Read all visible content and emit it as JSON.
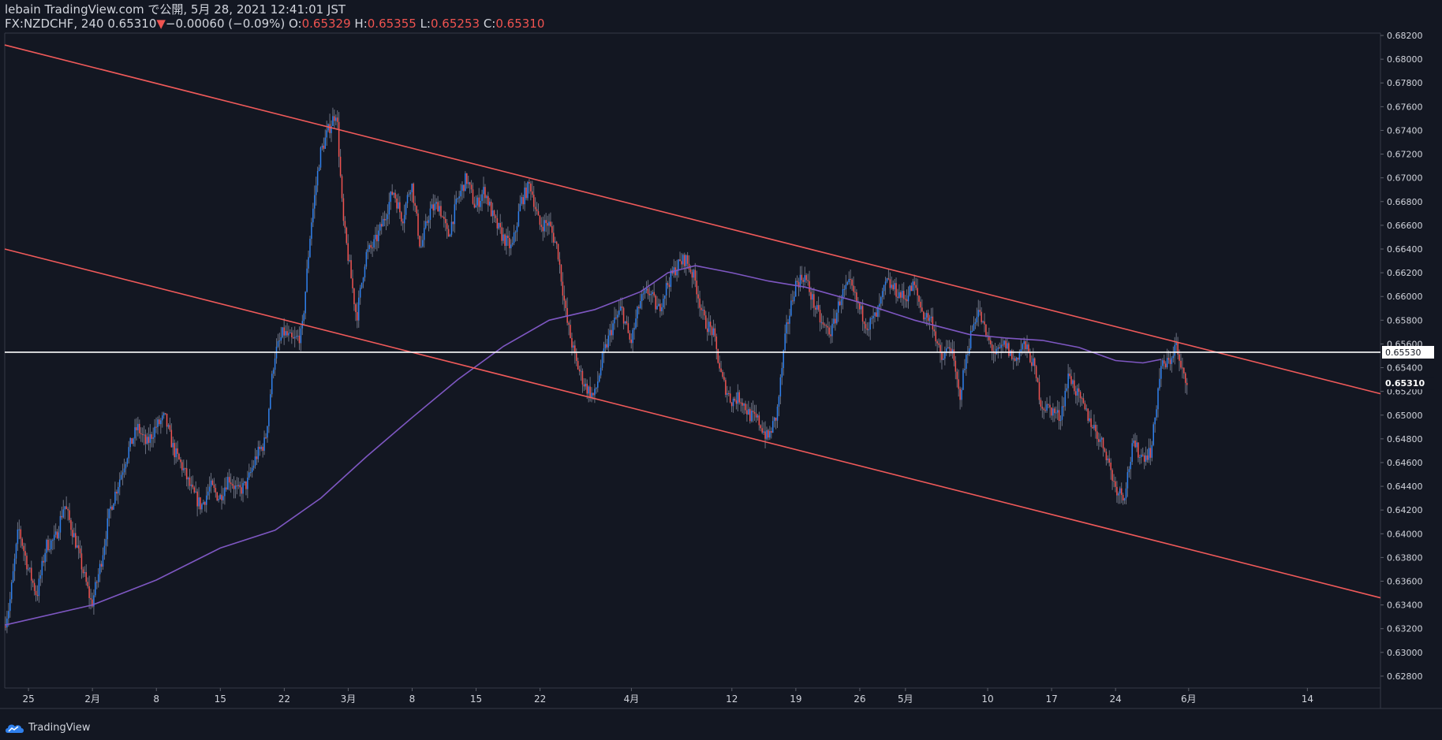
{
  "header": {
    "line1": "lebain TradingView.com で公開, 5月 28, 2021 12:41:01 JST",
    "symbol": "FX:NZDCHF, 240",
    "last": "0.65310",
    "change_arrow": "▼",
    "change": "−0.00060 (−0.09%)",
    "o_label": "O:",
    "o": "0.65329",
    "h_label": "H:",
    "h": "0.65355",
    "l_label": "L:",
    "l": "0.65253",
    "c_label": "C:",
    "c": "0.65310"
  },
  "footer": {
    "brand": "TradingView"
  },
  "colors": {
    "up": "#2f80ed",
    "down": "#ef5350",
    "ma": "#7e57c2",
    "trend": "#f05a5a",
    "bg": "#131722",
    "grid": "#2a2e39",
    "text": "#d1d4dc"
  },
  "chart_data": {
    "type": "candlestick",
    "ylim": [
      0.627,
      0.6822
    ],
    "y_ticks": [
      "0.62800",
      "0.63000",
      "0.63200",
      "0.63400",
      "0.63600",
      "0.63800",
      "0.64000",
      "0.64200",
      "0.64400",
      "0.64600",
      "0.64800",
      "0.65000",
      "0.65200",
      "0.65400",
      "0.65600",
      "0.65800",
      "0.66000",
      "0.66200",
      "0.66400",
      "0.66600",
      "0.66800",
      "0.67000",
      "0.67200",
      "0.67400",
      "0.67600",
      "0.67800",
      "0.68000",
      "0.68200"
    ],
    "x_ticks": [
      {
        "label": "25",
        "day": -7
      },
      {
        "label": "2月",
        "day": 0
      },
      {
        "label": "8",
        "day": 7
      },
      {
        "label": "15",
        "day": 14
      },
      {
        "label": "22",
        "day": 21
      },
      {
        "label": "3月",
        "day": 28
      },
      {
        "label": "8",
        "day": 35
      },
      {
        "label": "15",
        "day": 42
      },
      {
        "label": "22",
        "day": 49
      },
      {
        "label": "4月",
        "day": 59
      },
      {
        "label": "12",
        "day": 70
      },
      {
        "label": "19",
        "day": 77
      },
      {
        "label": "26",
        "day": 84
      },
      {
        "label": "5月",
        "day": 89
      },
      {
        "label": "10",
        "day": 98
      },
      {
        "label": "17",
        "day": 105
      },
      {
        "label": "24",
        "day": 112
      },
      {
        "label": "6月",
        "day": 120
      },
      {
        "label": "14",
        "day": 133
      }
    ],
    "x_range_days": [
      -9.6,
      141.0
    ],
    "horizontal_line": {
      "price": 0.6553,
      "label": "0.65530"
    },
    "last_price_label": "0.65310",
    "trend_lines": [
      {
        "from": {
          "day": -9.6,
          "price": 0.6812
        },
        "to": {
          "day": 141.0,
          "price": 0.6518
        }
      },
      {
        "from": {
          "day": -9.6,
          "price": 0.664
        },
        "to": {
          "day": 141.0,
          "price": 0.6346
        }
      }
    ],
    "moving_average": [
      {
        "day": -9.6,
        "price": 0.6323
      },
      {
        "day": 0,
        "price": 0.634
      },
      {
        "day": 7,
        "price": 0.6361
      },
      {
        "day": 14,
        "price": 0.6388
      },
      {
        "day": 20,
        "price": 0.6403
      },
      {
        "day": 25,
        "price": 0.643
      },
      {
        "day": 30,
        "price": 0.6465
      },
      {
        "day": 35,
        "price": 0.6498
      },
      {
        "day": 40,
        "price": 0.653
      },
      {
        "day": 45,
        "price": 0.6558
      },
      {
        "day": 50,
        "price": 0.658
      },
      {
        "day": 55,
        "price": 0.6589
      },
      {
        "day": 60,
        "price": 0.6604
      },
      {
        "day": 63,
        "price": 0.662
      },
      {
        "day": 66,
        "price": 0.6626
      },
      {
        "day": 70,
        "price": 0.662
      },
      {
        "day": 74,
        "price": 0.6613
      },
      {
        "day": 78,
        "price": 0.6608
      },
      {
        "day": 84,
        "price": 0.6595
      },
      {
        "day": 90,
        "price": 0.658
      },
      {
        "day": 96,
        "price": 0.6568
      },
      {
        "day": 100,
        "price": 0.6565
      },
      {
        "day": 104,
        "price": 0.6563
      },
      {
        "day": 108,
        "price": 0.6557
      },
      {
        "day": 112,
        "price": 0.6546
      },
      {
        "day": 115,
        "price": 0.6544
      },
      {
        "day": 117,
        "price": 0.6547
      }
    ],
    "price_path": [
      {
        "day": -9.6,
        "price": 0.6322
      },
      {
        "day": -9,
        "price": 0.634
      },
      {
        "day": -8,
        "price": 0.6405
      },
      {
        "day": -7,
        "price": 0.6372
      },
      {
        "day": -6,
        "price": 0.6348
      },
      {
        "day": -5,
        "price": 0.639
      },
      {
        "day": -4,
        "price": 0.6395
      },
      {
        "day": -3,
        "price": 0.6425
      },
      {
        "day": -2,
        "price": 0.64
      },
      {
        "day": -1,
        "price": 0.637
      },
      {
        "day": 0,
        "price": 0.634
      },
      {
        "day": 1,
        "price": 0.6375
      },
      {
        "day": 2,
        "price": 0.642
      },
      {
        "day": 3,
        "price": 0.6445
      },
      {
        "day": 4,
        "price": 0.647
      },
      {
        "day": 5,
        "price": 0.649
      },
      {
        "day": 6,
        "price": 0.6475
      },
      {
        "day": 7,
        "price": 0.649
      },
      {
        "day": 8,
        "price": 0.6498
      },
      {
        "day": 9,
        "price": 0.647
      },
      {
        "day": 10,
        "price": 0.6455
      },
      {
        "day": 11,
        "price": 0.6435
      },
      {
        "day": 12,
        "price": 0.6423
      },
      {
        "day": 13,
        "price": 0.644
      },
      {
        "day": 14,
        "price": 0.643
      },
      {
        "day": 15,
        "price": 0.6448
      },
      {
        "day": 16,
        "price": 0.6435
      },
      {
        "day": 17,
        "price": 0.6442
      },
      {
        "day": 18,
        "price": 0.6465
      },
      {
        "day": 19,
        "price": 0.6478
      },
      {
        "day": 20,
        "price": 0.655
      },
      {
        "day": 21,
        "price": 0.657
      },
      {
        "day": 22,
        "price": 0.6562
      },
      {
        "day": 23,
        "price": 0.6568
      },
      {
        "day": 24,
        "price": 0.666
      },
      {
        "day": 25,
        "price": 0.672
      },
      {
        "day": 26,
        "price": 0.6742
      },
      {
        "day": 26.8,
        "price": 0.6757
      },
      {
        "day": 27.5,
        "price": 0.6665
      },
      {
        "day": 28.5,
        "price": 0.661
      },
      {
        "day": 29,
        "price": 0.6582
      },
      {
        "day": 30,
        "price": 0.6635
      },
      {
        "day": 31,
        "price": 0.6645
      },
      {
        "day": 32,
        "price": 0.6665
      },
      {
        "day": 33,
        "price": 0.669
      },
      {
        "day": 34,
        "price": 0.6665
      },
      {
        "day": 35,
        "price": 0.6697
      },
      {
        "day": 36,
        "price": 0.664
      },
      {
        "day": 37,
        "price": 0.6672
      },
      {
        "day": 38,
        "price": 0.6678
      },
      {
        "day": 39,
        "price": 0.665
      },
      {
        "day": 40,
        "price": 0.668
      },
      {
        "day": 41,
        "price": 0.67
      },
      {
        "day": 42,
        "price": 0.6675
      },
      {
        "day": 43,
        "price": 0.669
      },
      {
        "day": 44,
        "price": 0.6665
      },
      {
        "day": 45,
        "price": 0.665
      },
      {
        "day": 46,
        "price": 0.664
      },
      {
        "day": 47,
        "price": 0.668
      },
      {
        "day": 48,
        "price": 0.6695
      },
      {
        "day": 49,
        "price": 0.666
      },
      {
        "day": 50,
        "price": 0.6662
      },
      {
        "day": 51,
        "price": 0.664
      },
      {
        "day": 52,
        "price": 0.658
      },
      {
        "day": 53,
        "price": 0.6545
      },
      {
        "day": 54,
        "price": 0.6525
      },
      {
        "day": 55,
        "price": 0.6515
      },
      {
        "day": 56,
        "price": 0.655
      },
      {
        "day": 57,
        "price": 0.6575
      },
      {
        "day": 58,
        "price": 0.659
      },
      {
        "day": 59,
        "price": 0.656
      },
      {
        "day": 60,
        "price": 0.6595
      },
      {
        "day": 61,
        "price": 0.6605
      },
      {
        "day": 62,
        "price": 0.6588
      },
      {
        "day": 63,
        "price": 0.661
      },
      {
        "day": 64,
        "price": 0.6625
      },
      {
        "day": 65,
        "price": 0.6632
      },
      {
        "day": 66,
        "price": 0.6615
      },
      {
        "day": 67,
        "price": 0.658
      },
      {
        "day": 68,
        "price": 0.657
      },
      {
        "day": 69,
        "price": 0.653
      },
      {
        "day": 70,
        "price": 0.6512
      },
      {
        "day": 71,
        "price": 0.6515
      },
      {
        "day": 72,
        "price": 0.65
      },
      {
        "day": 73,
        "price": 0.6495
      },
      {
        "day": 74,
        "price": 0.648
      },
      {
        "day": 75,
        "price": 0.65
      },
      {
        "day": 76,
        "price": 0.657
      },
      {
        "day": 77,
        "price": 0.661
      },
      {
        "day": 78,
        "price": 0.6618
      },
      {
        "day": 79,
        "price": 0.6595
      },
      {
        "day": 80,
        "price": 0.6575
      },
      {
        "day": 81,
        "price": 0.657
      },
      {
        "day": 82,
        "price": 0.66
      },
      {
        "day": 83,
        "price": 0.661
      },
      {
        "day": 84,
        "price": 0.659
      },
      {
        "day": 85,
        "price": 0.6575
      },
      {
        "day": 86,
        "price": 0.6585
      },
      {
        "day": 87,
        "price": 0.6612
      },
      {
        "day": 88,
        "price": 0.6605
      },
      {
        "day": 89,
        "price": 0.6598
      },
      {
        "day": 90,
        "price": 0.661
      },
      {
        "day": 91,
        "price": 0.6585
      },
      {
        "day": 92,
        "price": 0.658
      },
      {
        "day": 93,
        "price": 0.6545
      },
      {
        "day": 94,
        "price": 0.656
      },
      {
        "day": 95,
        "price": 0.6515
      },
      {
        "day": 96,
        "price": 0.656
      },
      {
        "day": 97,
        "price": 0.659
      },
      {
        "day": 98,
        "price": 0.6565
      },
      {
        "day": 99,
        "price": 0.655
      },
      {
        "day": 100,
        "price": 0.656
      },
      {
        "day": 101,
        "price": 0.6545
      },
      {
        "day": 102,
        "price": 0.656
      },
      {
        "day": 103,
        "price": 0.6545
      },
      {
        "day": 104,
        "price": 0.6508
      },
      {
        "day": 105,
        "price": 0.6505
      },
      {
        "day": 106,
        "price": 0.6498
      },
      {
        "day": 107,
        "price": 0.6535
      },
      {
        "day": 108,
        "price": 0.6515
      },
      {
        "day": 109,
        "price": 0.65
      },
      {
        "day": 110,
        "price": 0.6485
      },
      {
        "day": 111,
        "price": 0.647
      },
      {
        "day": 112,
        "price": 0.644
      },
      {
        "day": 113,
        "price": 0.6432
      },
      {
        "day": 114,
        "price": 0.6475
      },
      {
        "day": 115,
        "price": 0.6465
      },
      {
        "day": 116,
        "price": 0.647
      },
      {
        "day": 117,
        "price": 0.654
      },
      {
        "day": 118,
        "price": 0.6545
      },
      {
        "day": 118.7,
        "price": 0.656
      },
      {
        "day": 119.2,
        "price": 0.6538
      },
      {
        "day": 119.8,
        "price": 0.6531
      }
    ]
  }
}
